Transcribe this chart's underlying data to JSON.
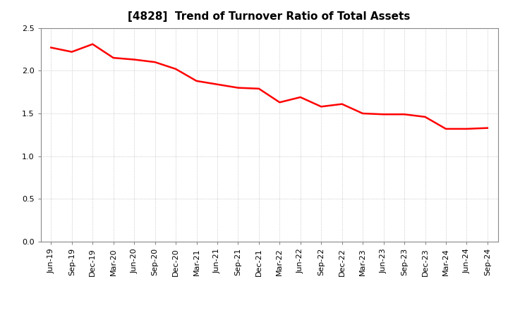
{
  "title": "[4828]  Trend of Turnover Ratio of Total Assets",
  "x_labels": [
    "Jun-19",
    "Sep-19",
    "Dec-19",
    "Mar-20",
    "Jun-20",
    "Sep-20",
    "Dec-20",
    "Mar-21",
    "Jun-21",
    "Sep-21",
    "Dec-21",
    "Mar-22",
    "Jun-22",
    "Sep-22",
    "Dec-22",
    "Mar-23",
    "Jun-23",
    "Sep-23",
    "Dec-23",
    "Mar-24",
    "Jun-24",
    "Sep-24"
  ],
  "y_values": [
    2.27,
    2.22,
    2.31,
    2.15,
    2.13,
    2.1,
    2.02,
    1.88,
    1.84,
    1.8,
    1.79,
    1.63,
    1.69,
    1.58,
    1.61,
    1.5,
    1.49,
    1.49,
    1.46,
    1.32,
    1.32,
    1.33
  ],
  "line_color": "#FF0000",
  "line_width": 1.8,
  "ylim": [
    0.0,
    2.5
  ],
  "yticks": [
    0.0,
    0.5,
    1.0,
    1.5,
    2.0,
    2.5
  ],
  "grid_color": "#bbbbbb",
  "bg_color": "#ffffff",
  "title_fontsize": 11,
  "tick_fontsize": 8
}
